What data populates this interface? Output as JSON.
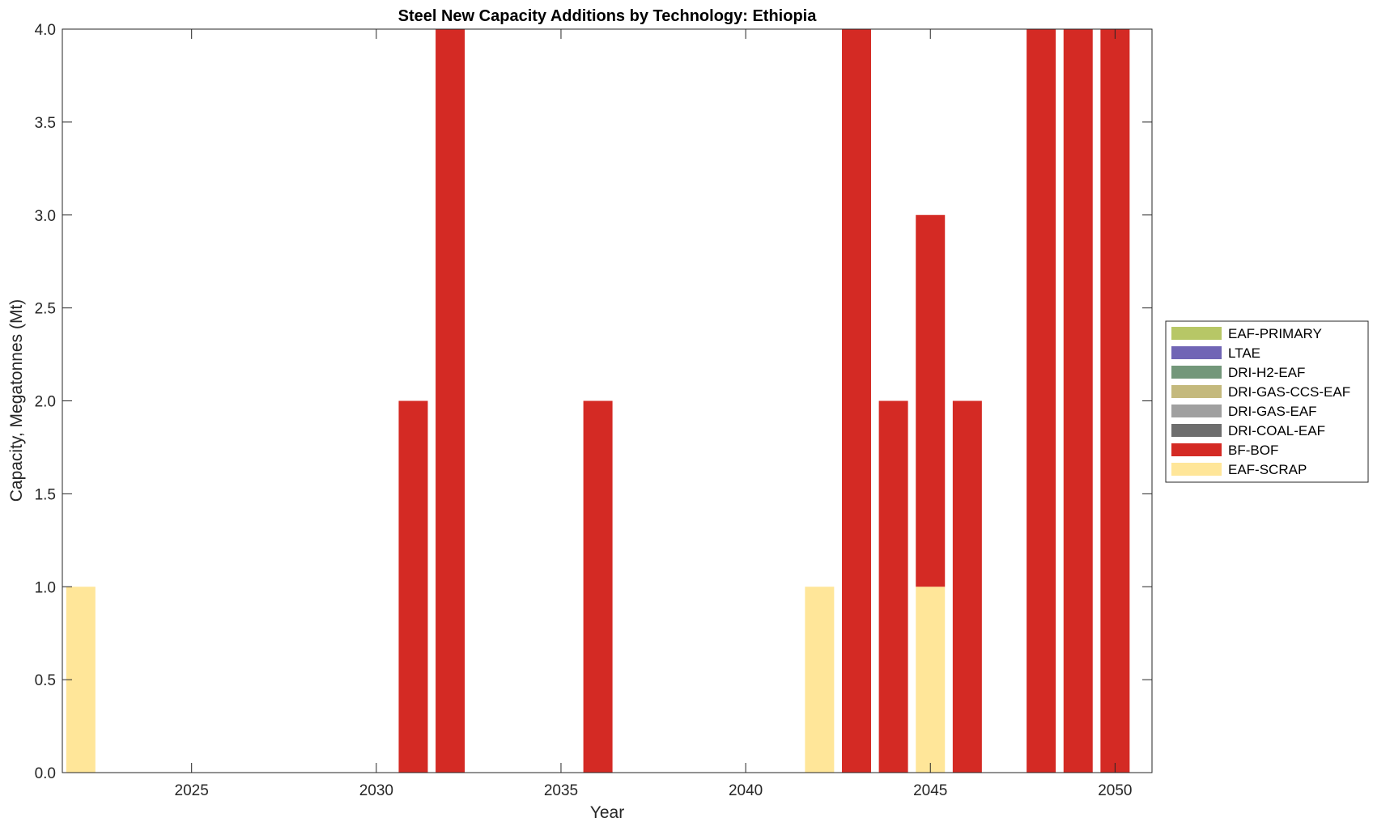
{
  "chart_data": {
    "type": "bar",
    "stacked": true,
    "title": "Steel New Capacity Additions by Technology: Ethiopia",
    "xlabel": "Year",
    "ylabel": "Capacity, Megatonnes (Mt)",
    "xlim": [
      2021.5,
      2051
    ],
    "ylim": [
      0,
      4
    ],
    "xticks": [
      2025,
      2030,
      2035,
      2040,
      2045,
      2050
    ],
    "yticks": [
      0.0,
      0.5,
      1.0,
      1.5,
      2.0,
      2.5,
      3.0,
      3.5,
      4.0
    ],
    "ytick_labels": [
      "0.0",
      "0.5",
      "1.0",
      "1.5",
      "2.0",
      "2.5",
      "3.0",
      "3.5",
      "4.0"
    ],
    "grid": false,
    "legend_position": "outside-right",
    "x": [
      2022,
      2023,
      2024,
      2025,
      2026,
      2027,
      2028,
      2029,
      2030,
      2031,
      2032,
      2033,
      2034,
      2035,
      2036,
      2037,
      2038,
      2039,
      2040,
      2041,
      2042,
      2043,
      2044,
      2045,
      2046,
      2047,
      2048,
      2049,
      2050
    ],
    "series": [
      {
        "name": "EAF-SCRAP",
        "color": "#FFE699",
        "values": [
          1,
          0,
          0,
          0,
          0,
          0,
          0,
          0,
          0,
          0,
          0,
          0,
          0,
          0,
          0,
          0,
          0,
          0,
          0,
          0,
          1,
          0,
          0,
          1,
          0,
          0,
          0,
          0,
          0
        ]
      },
      {
        "name": "BF-BOF",
        "color": "#D42A24",
        "values": [
          0,
          0,
          0,
          0,
          0,
          0,
          0,
          0,
          0,
          2,
          4,
          0,
          0,
          0,
          2,
          0,
          0,
          0,
          0,
          0,
          0,
          4,
          2,
          2,
          2,
          0,
          4,
          4,
          4
        ]
      },
      {
        "name": "DRI-COAL-EAF",
        "color": "#6E6E6E",
        "values": [
          0,
          0,
          0,
          0,
          0,
          0,
          0,
          0,
          0,
          0,
          0,
          0,
          0,
          0,
          0,
          0,
          0,
          0,
          0,
          0,
          0,
          0,
          0,
          0,
          0,
          0,
          0,
          0,
          0
        ]
      },
      {
        "name": "DRI-GAS-EAF",
        "color": "#A0A0A0",
        "values": [
          0,
          0,
          0,
          0,
          0,
          0,
          0,
          0,
          0,
          0,
          0,
          0,
          0,
          0,
          0,
          0,
          0,
          0,
          0,
          0,
          0,
          0,
          0,
          0,
          0,
          0,
          0,
          0,
          0
        ]
      },
      {
        "name": "DRI-GAS-CCS-EAF",
        "color": "#C4B97D",
        "values": [
          0,
          0,
          0,
          0,
          0,
          0,
          0,
          0,
          0,
          0,
          0,
          0,
          0,
          0,
          0,
          0,
          0,
          0,
          0,
          0,
          0,
          0,
          0,
          0,
          0,
          0,
          0,
          0,
          0
        ]
      },
      {
        "name": "DRI-H2-EAF",
        "color": "#73977A",
        "values": [
          0,
          0,
          0,
          0,
          0,
          0,
          0,
          0,
          0,
          0,
          0,
          0,
          0,
          0,
          0,
          0,
          0,
          0,
          0,
          0,
          0,
          0,
          0,
          0,
          0,
          0,
          0,
          0,
          0
        ]
      },
      {
        "name": "LTAE",
        "color": "#7065B5",
        "values": [
          0,
          0,
          0,
          0,
          0,
          0,
          0,
          0,
          0,
          0,
          0,
          0,
          0,
          0,
          0,
          0,
          0,
          0,
          0,
          0,
          0,
          0,
          0,
          0,
          0,
          0,
          0,
          0,
          0
        ]
      },
      {
        "name": "EAF-PRIMARY",
        "color": "#B7C766",
        "values": [
          0,
          0,
          0,
          0,
          0,
          0,
          0,
          0,
          0,
          0,
          0,
          0,
          0,
          0,
          0,
          0,
          0,
          0,
          0,
          0,
          0,
          0,
          0,
          0,
          0,
          0,
          0,
          0,
          0
        ]
      }
    ],
    "legend_order": [
      "EAF-PRIMARY",
      "LTAE",
      "DRI-H2-EAF",
      "DRI-GAS-CCS-EAF",
      "DRI-GAS-EAF",
      "DRI-COAL-EAF",
      "BF-BOF",
      "EAF-SCRAP"
    ]
  }
}
